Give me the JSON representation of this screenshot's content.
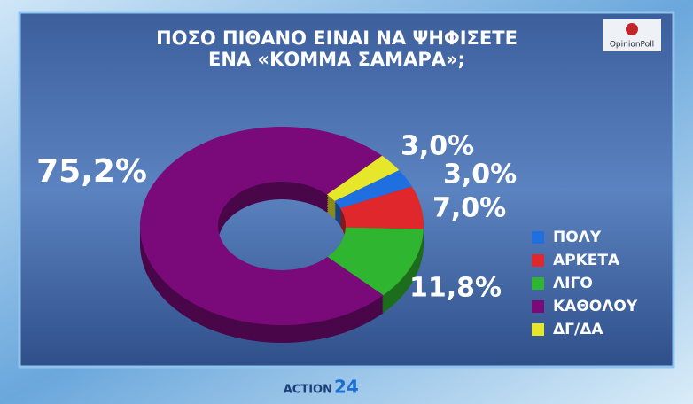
{
  "chart_data": {
    "type": "donut",
    "title_lines": [
      "ΠΟΣΟ ΠΙΘΑΝΟ ΕΙΝΑΙ ΝΑ ΨΗΦΙΣΕΤΕ",
      "ΕΝΑ «ΚΟΜΜΑ ΣΑΜΑΡΑ»;"
    ],
    "categories": [
      "ΠΟΛΥ",
      "ΑΡΚΕΤΑ",
      "ΛΙΓΟ",
      "ΚΑΘΟΛΟΥ",
      "ΔΓ/ΔΑ"
    ],
    "values": [
      3.0,
      7.0,
      11.8,
      75.2,
      3.0
    ],
    "value_labels": [
      "3,0%",
      "7,0%",
      "11,8%",
      "75,2%",
      "3,0%"
    ],
    "colors": [
      "#1f6fe0",
      "#e0282c",
      "#2fb52f",
      "#7a0a7a",
      "#e6e62a"
    ],
    "legend": "right"
  },
  "branding": {
    "pollster": "OpinionPoll",
    "channel": "ACTION",
    "channel_number": "24"
  }
}
